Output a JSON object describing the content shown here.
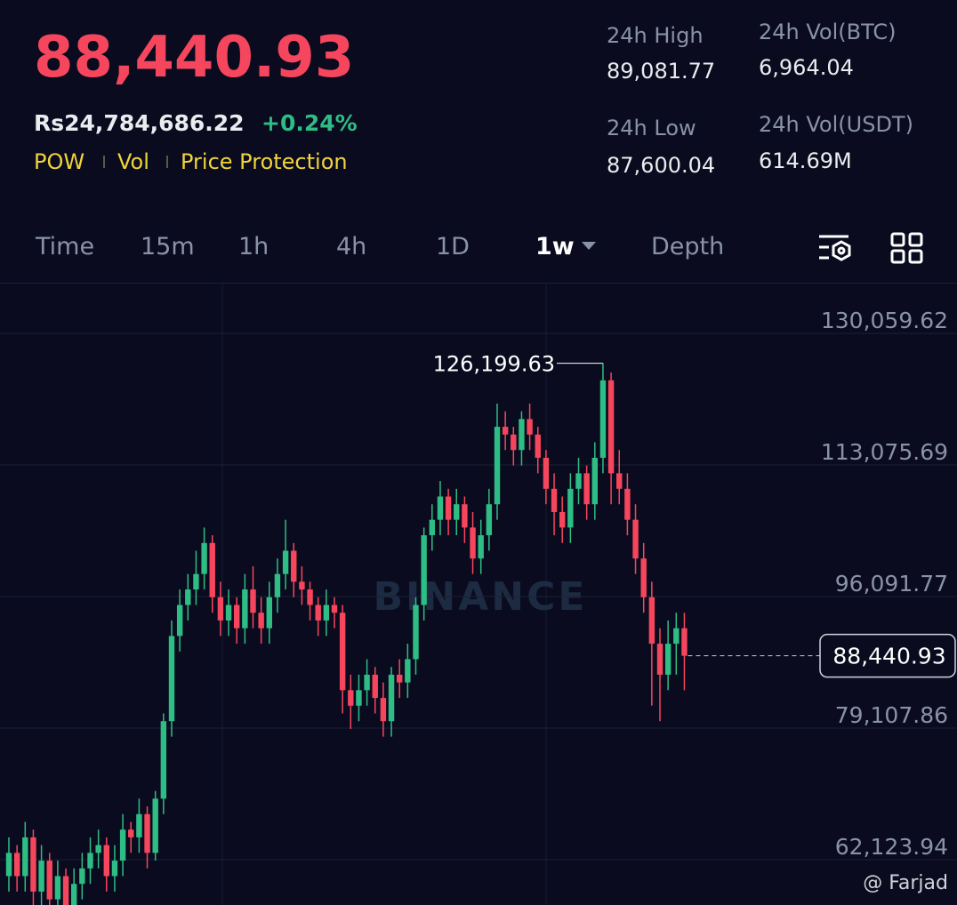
{
  "header": {
    "price": "88,440.93",
    "local_price": "Rs24,784,686.22",
    "change": "+0.24%",
    "tags": [
      "POW",
      "Vol",
      "Price Protection"
    ],
    "stats": [
      {
        "label": "24h High",
        "value": "89,081.77"
      },
      {
        "label": "24h Vol(BTC)",
        "value": "6,964.04"
      },
      {
        "label": "24h Low",
        "value": "87,600.04"
      },
      {
        "label": "24h Vol(USDT)",
        "value": "614.69M"
      }
    ]
  },
  "tabs": [
    "Time",
    "15m",
    "1h",
    "4h",
    "1D",
    "1w",
    "Depth"
  ],
  "watermark": "BINANCE",
  "credit": "@ Farjad",
  "chart_data": {
    "type": "candlestick",
    "ylim": [
      56270,
      136601
    ],
    "yticks": [
      {
        "value": 130059.62,
        "label": "130,059.62"
      },
      {
        "value": 113075.69,
        "label": "113,075.69"
      },
      {
        "value": 96091.77,
        "label": "96,091.77"
      },
      {
        "value": 79107.86,
        "label": "79,107.86"
      },
      {
        "value": 62123.94,
        "label": "62,123.94"
      }
    ],
    "grid": true,
    "up_color": "#2ebd85",
    "down_color": "#f6465d",
    "last_price": 88440.93,
    "last_price_label": "88,440.93",
    "high_label": "126,199.63",
    "open": [
      60000,
      63000,
      60000,
      65000,
      58000,
      62000,
      57000,
      60000,
      56000,
      59000,
      61000,
      63000,
      64000,
      60000,
      62000,
      66000,
      65000,
      68000,
      63000,
      70000,
      80000,
      91000,
      95000,
      97000,
      99000,
      103000,
      96000,
      93000,
      95000,
      92000,
      97000,
      94000,
      92000,
      96000,
      99000,
      102000,
      98000,
      97000,
      95000,
      93000,
      95000,
      94000,
      84000,
      82000,
      84000,
      86000,
      83000,
      80000,
      86000,
      85000,
      88000,
      95000,
      104000,
      106000,
      109000,
      106000,
      108000,
      105000,
      101000,
      104000,
      108000,
      118000,
      117000,
      115000,
      119000,
      117000,
      114000,
      110000,
      107000,
      105000,
      110000,
      112000,
      108000,
      114000,
      124000,
      112000,
      110000,
      106000,
      101000,
      96000,
      90000,
      86000,
      90000,
      92000
    ],
    "high": [
      65000,
      64000,
      67000,
      66000,
      64000,
      63000,
      62000,
      61000,
      61000,
      63000,
      65000,
      66000,
      65000,
      64000,
      68000,
      67000,
      70000,
      69000,
      71000,
      81000,
      93000,
      97000,
      99000,
      102000,
      105000,
      104000,
      98000,
      97000,
      96000,
      99000,
      100000,
      96000,
      98000,
      101000,
      106000,
      103000,
      100000,
      98000,
      96000,
      97000,
      96000,
      95000,
      86000,
      86000,
      88000,
      87000,
      85000,
      87000,
      88000,
      90000,
      96000,
      105000,
      108000,
      111000,
      110000,
      110000,
      109000,
      107000,
      106000,
      110000,
      121000,
      120000,
      118000,
      120000,
      121000,
      118000,
      115000,
      112000,
      109000,
      112000,
      114000,
      113000,
      116000,
      126199.63,
      125000,
      115000,
      112000,
      108000,
      103000,
      98000,
      92000,
      93000,
      94000,
      94000
    ],
    "low": [
      58000,
      58000,
      58000,
      56000,
      56000,
      55000,
      55000,
      54000,
      54000,
      57000,
      59000,
      61000,
      58000,
      58000,
      60000,
      63000,
      63000,
      61000,
      62000,
      68000,
      78000,
      89000,
      93000,
      95000,
      97000,
      94000,
      91000,
      91000,
      90000,
      90000,
      92000,
      90000,
      90000,
      94000,
      97000,
      96000,
      95000,
      93000,
      91000,
      91000,
      92000,
      81000,
      79000,
      80000,
      82000,
      81000,
      78000,
      78000,
      83000,
      83000,
      86000,
      93000,
      102000,
      104000,
      104000,
      104000,
      103000,
      99000,
      99000,
      102000,
      106000,
      115000,
      113000,
      113000,
      115000,
      112000,
      108000,
      104000,
      103000,
      103000,
      108000,
      106000,
      106000,
      112000,
      108000,
      108000,
      104000,
      99000,
      94000,
      82000,
      80000,
      84000,
      86000,
      84000
    ],
    "close": [
      63000,
      60000,
      65000,
      58000,
      62000,
      57000,
      60000,
      56000,
      59000,
      61000,
      63000,
      64000,
      60000,
      62000,
      66000,
      65000,
      68000,
      63000,
      70000,
      80000,
      91000,
      95000,
      97000,
      99000,
      103000,
      96000,
      93000,
      95000,
      92000,
      97000,
      94000,
      92000,
      96000,
      99000,
      102000,
      98000,
      97000,
      95000,
      93000,
      95000,
      94000,
      84000,
      82000,
      84000,
      86000,
      83000,
      80000,
      86000,
      85000,
      88000,
      95000,
      104000,
      106000,
      109000,
      106000,
      108000,
      105000,
      101000,
      104000,
      108000,
      118000,
      117000,
      115000,
      119000,
      117000,
      114000,
      110000,
      107000,
      105000,
      110000,
      112000,
      108000,
      114000,
      124000,
      112000,
      110000,
      106000,
      101000,
      96000,
      90000,
      86000,
      90000,
      92000,
      88440.93
    ]
  }
}
